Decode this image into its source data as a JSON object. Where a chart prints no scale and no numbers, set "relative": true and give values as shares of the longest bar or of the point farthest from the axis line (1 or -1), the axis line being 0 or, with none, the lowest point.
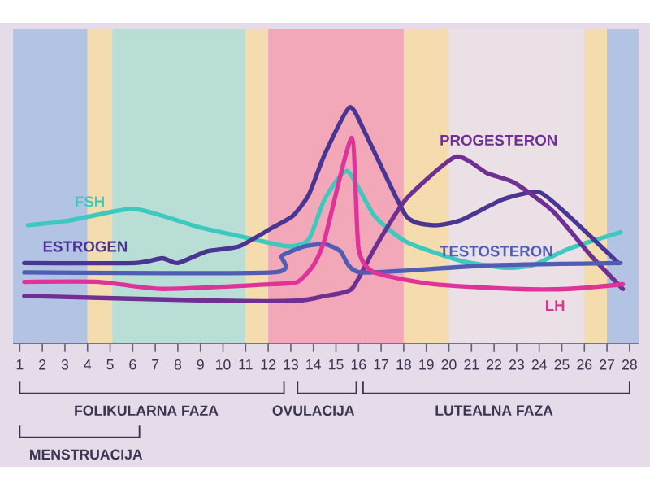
{
  "chart_data": {
    "type": "line",
    "relative": true,
    "xlim": [
      0.7,
      28.4
    ],
    "xticks": [
      1,
      2,
      3,
      4,
      5,
      6,
      7,
      8,
      9,
      10,
      11,
      12,
      13,
      14,
      15,
      16,
      17,
      18,
      19,
      20,
      21,
      22,
      23,
      24,
      25,
      26,
      27,
      28
    ],
    "bands": [
      {
        "axis": "x",
        "from": 0.7,
        "to": 4.0,
        "color": "#b3c3e4"
      },
      {
        "axis": "x",
        "from": 4.0,
        "to": 5.1,
        "color": "#f4dcae"
      },
      {
        "axis": "x",
        "from": 5.1,
        "to": 11.0,
        "color": "#b9ded6"
      },
      {
        "axis": "x",
        "from": 11.0,
        "to": 12.0,
        "color": "#f4dcae"
      },
      {
        "axis": "x",
        "from": 12.0,
        "to": 18.0,
        "color": "#f2a8b8"
      },
      {
        "axis": "x",
        "from": 18.0,
        "to": 20.0,
        "color": "#f4dcae"
      },
      {
        "axis": "x",
        "from": 20.0,
        "to": 26.0,
        "color": "#ebe0e5"
      },
      {
        "axis": "x",
        "from": 26.0,
        "to": 27.0,
        "color": "#f4dcae"
      },
      {
        "axis": "x",
        "from": 27.0,
        "to": 28.4,
        "color": "#b3c3e4"
      }
    ],
    "series": [
      {
        "name": "FSH",
        "color": "#3ec9bf",
        "x": [
          1.36,
          3.2,
          5.9,
          7.3,
          9,
          10.9,
          12.9,
          13.8,
          14.5,
          15.5,
          16.7,
          18.1,
          20.5,
          22.4,
          23.7,
          25.3,
          27.6
        ],
        "values": [
          0.5,
          0.52,
          0.57,
          0.54,
          0.49,
          0.45,
          0.41,
          0.44,
          0.61,
          0.73,
          0.54,
          0.43,
          0.35,
          0.32,
          0.33,
          0.4,
          0.47
        ]
      },
      {
        "name": "ESTROGEN",
        "color": "#4b3592",
        "x": [
          1.2,
          6.1,
          7.3,
          8,
          9.3,
          10.7,
          12.2,
          13.1,
          13.8,
          14.5,
          15.6,
          16.3,
          18.1,
          19.3,
          20.5,
          22.4,
          24,
          25.3,
          27.5
        ],
        "values": [
          0.34,
          0.34,
          0.36,
          0.34,
          0.39,
          0.41,
          0.49,
          0.54,
          0.63,
          0.8,
          1.0,
          0.89,
          0.54,
          0.5,
          0.52,
          0.61,
          0.64,
          0.54,
          0.34
        ]
      },
      {
        "name": "PROGESTERON",
        "color": "#6f2f93",
        "x": [
          1.2,
          9.7,
          13.3,
          14.5,
          15.7,
          16.7,
          18.1,
          20.3,
          21.7,
          22.9,
          24.6,
          26.3,
          27.7
        ],
        "values": [
          0.2,
          0.18,
          0.18,
          0.2,
          0.23,
          0.4,
          0.61,
          0.79,
          0.72,
          0.68,
          0.56,
          0.37,
          0.23
        ]
      },
      {
        "name": "TESTOSTERON",
        "color": "#4f5db4",
        "x": [
          1.2,
          12.2,
          12.6,
          13.6,
          14.5,
          15.2,
          16.1,
          21.7,
          27.6
        ],
        "values": [
          0.3,
          0.3,
          0.37,
          0.41,
          0.42,
          0.39,
          0.3,
          0.33,
          0.34
        ]
      },
      {
        "name": "LH",
        "color": "#e0339a",
        "x": [
          1.2,
          4.5,
          7.3,
          12.2,
          13.3,
          14,
          14.5,
          15.7,
          16,
          16.7,
          19.3,
          22.9,
          25.3,
          27.7
        ],
        "values": [
          0.26,
          0.26,
          0.23,
          0.25,
          0.26,
          0.33,
          0.44,
          0.87,
          0.4,
          0.3,
          0.25,
          0.23,
          0.23,
          0.25
        ]
      }
    ],
    "annotations": [
      "FOLIKULARNA FAZA",
      "OVULACIJA",
      "LUTEALNA FAZA",
      "MENSTRUACIJA"
    ]
  }
}
